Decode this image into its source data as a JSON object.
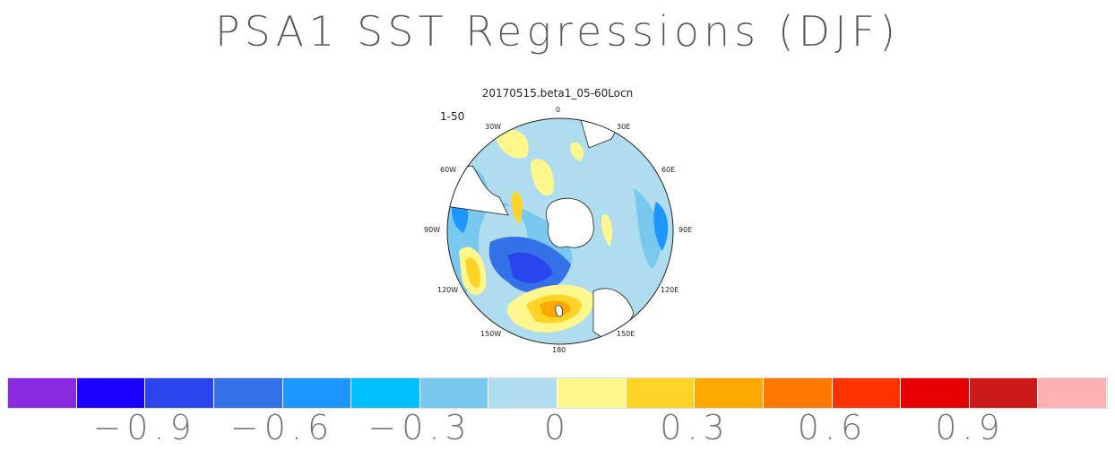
{
  "title": "PSA1 SST Regressions (DJF)",
  "subtitle": "20170515.beta1_05-60Locn",
  "range_label": "1-50",
  "lon_labels": {
    "top": "0",
    "w30": "30W",
    "e30": "30E",
    "w60": "60W",
    "e60": "60E",
    "w90": "90W",
    "e90": "90E",
    "w120": "120W",
    "e120": "120E",
    "w150": "150W",
    "e150": "150E",
    "bottom": "180"
  },
  "colorbar": {
    "colors": [
      "#8a2be2",
      "#1a00ff",
      "#2a44ee",
      "#3470e8",
      "#1e96ff",
      "#00bfff",
      "#78c8f0",
      "#b0dcf0",
      "#fff78c",
      "#ffd426",
      "#ffa800",
      "#ff7800",
      "#ff3200",
      "#e60000",
      "#cc1a1a",
      "#ffb0b0"
    ],
    "tick_labels": [
      "−0.9",
      "−0.6",
      "−0.3",
      "0",
      "0.3",
      "0.6",
      "0.9"
    ]
  }
}
